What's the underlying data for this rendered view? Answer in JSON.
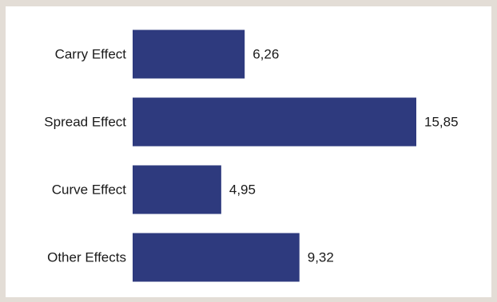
{
  "chart_data": {
    "type": "bar",
    "orientation": "horizontal",
    "categories": [
      "Carry Effect",
      "Spread Effect",
      "Curve Effect",
      "Other Effects"
    ],
    "values": [
      6.26,
      15.85,
      4.95,
      9.32
    ],
    "value_labels": [
      "6,26",
      "15,85",
      "4,95",
      "9,32"
    ],
    "bar_color": "#2e3a7e",
    "title": "",
    "xlabel": "",
    "ylabel": "",
    "xlim": [
      0,
      15.85
    ],
    "grid": false,
    "legend": "none"
  }
}
